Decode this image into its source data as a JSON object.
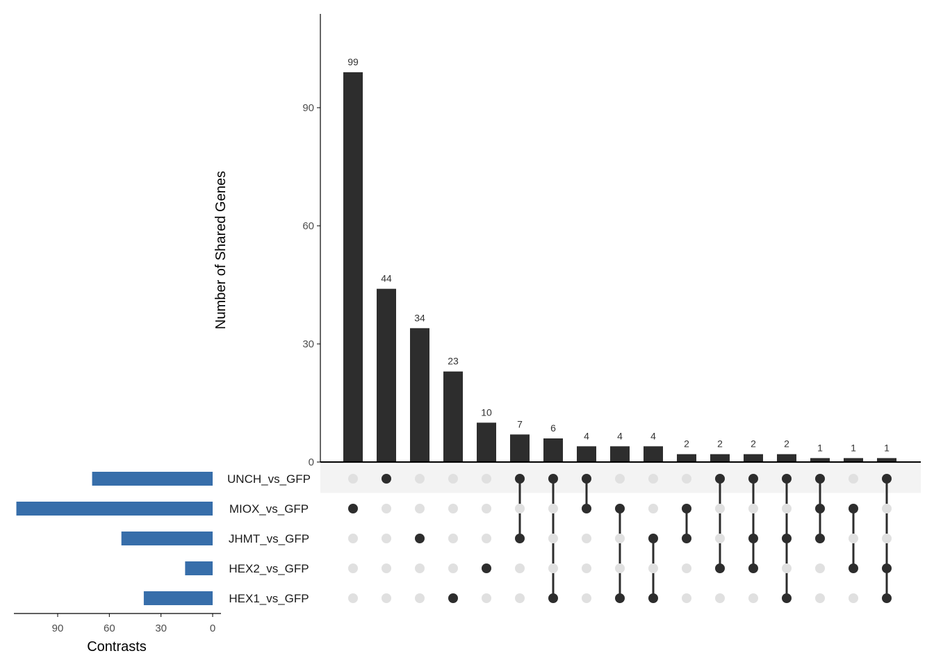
{
  "chart_data": {
    "type": "upset",
    "ylabel": "Number of Shared Genes",
    "set_size_xlabel": "Contrasts",
    "ylim": [
      0,
      115
    ],
    "y_ticks": [
      0,
      30,
      60,
      90
    ],
    "set_size_ticks": [
      90,
      60,
      30,
      0
    ],
    "set_size_xlim": [
      0,
      117
    ],
    "sets": [
      "UNCH_vs_GFP",
      "MIOX_vs_GFP",
      "JHMT_vs_GFP",
      "HEX2_vs_GFP",
      "HEX1_vs_GFP"
    ],
    "set_sizes": [
      70,
      114,
      53,
      16,
      40
    ],
    "intersections": [
      {
        "sets": [
          "MIOX_vs_GFP"
        ],
        "size": 99
      },
      {
        "sets": [
          "UNCH_vs_GFP"
        ],
        "size": 44
      },
      {
        "sets": [
          "JHMT_vs_GFP"
        ],
        "size": 34
      },
      {
        "sets": [
          "HEX1_vs_GFP"
        ],
        "size": 23
      },
      {
        "sets": [
          "HEX2_vs_GFP"
        ],
        "size": 10
      },
      {
        "sets": [
          "UNCH_vs_GFP",
          "JHMT_vs_GFP"
        ],
        "size": 7
      },
      {
        "sets": [
          "UNCH_vs_GFP",
          "HEX1_vs_GFP"
        ],
        "size": 6
      },
      {
        "sets": [
          "UNCH_vs_GFP",
          "MIOX_vs_GFP"
        ],
        "size": 4
      },
      {
        "sets": [
          "MIOX_vs_GFP",
          "HEX1_vs_GFP"
        ],
        "size": 4
      },
      {
        "sets": [
          "JHMT_vs_GFP",
          "HEX1_vs_GFP"
        ],
        "size": 4
      },
      {
        "sets": [
          "MIOX_vs_GFP",
          "JHMT_vs_GFP"
        ],
        "size": 2
      },
      {
        "sets": [
          "UNCH_vs_GFP",
          "HEX2_vs_GFP"
        ],
        "size": 2
      },
      {
        "sets": [
          "UNCH_vs_GFP",
          "JHMT_vs_GFP",
          "HEX2_vs_GFP"
        ],
        "size": 2
      },
      {
        "sets": [
          "UNCH_vs_GFP",
          "JHMT_vs_GFP",
          "HEX1_vs_GFP"
        ],
        "size": 2
      },
      {
        "sets": [
          "UNCH_vs_GFP",
          "MIOX_vs_GFP",
          "JHMT_vs_GFP"
        ],
        "size": 1
      },
      {
        "sets": [
          "MIOX_vs_GFP",
          "HEX2_vs_GFP"
        ],
        "size": 1
      },
      {
        "sets": [
          "UNCH_vs_GFP",
          "HEX2_vs_GFP",
          "HEX1_vs_GFP"
        ],
        "size": 1
      }
    ],
    "colors": {
      "bar": "#2d2d2d",
      "set_bar": "#376eaa",
      "dot_active": "#2d2d2d",
      "dot_inactive": "#e0e0e0",
      "stripe": "#f3f3f3",
      "axis": "#000000"
    }
  }
}
